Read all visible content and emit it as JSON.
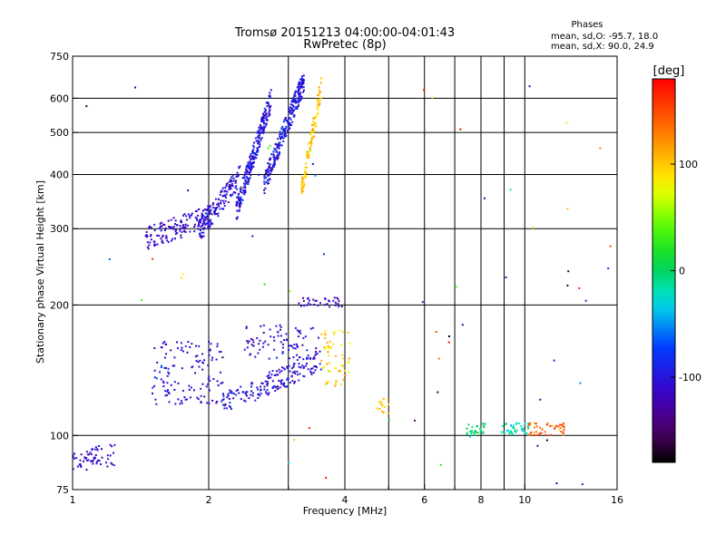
{
  "chart_data": {
    "type": "scatter",
    "title": "Tromsø 20151213 04:00:00-04:01:43",
    "subtitle": "RwPretec (8p)",
    "xlabel": "Frequency [MHz]",
    "ylabel": "Stationary phase Virtual Height [km]",
    "xscale": "log",
    "yscale": "log",
    "xlim": [
      1,
      16
    ],
    "ylim": [
      75,
      750
    ],
    "x_ticks": [
      1,
      2,
      4,
      6,
      8,
      10,
      16
    ],
    "x_tick_labels": [
      "1",
      "2",
      "4",
      "6",
      "8",
      "10",
      "16"
    ],
    "x_minor_ticks": [
      3,
      5,
      7,
      9
    ],
    "y_ticks": [
      75,
      100,
      200,
      300,
      400,
      500,
      600,
      750
    ],
    "y_tick_labels": [
      "75",
      "100",
      "200",
      "300",
      "400",
      "500",
      "600",
      "750"
    ],
    "grid": true,
    "phases": {
      "title": "Phases",
      "line_o": "mean, sd,O: -95.7, 18.0",
      "line_x": "mean, sd,X: 90.0, 24.9"
    },
    "colorbar": {
      "label": "[deg]",
      "range": [
        -180,
        180
      ],
      "ticks": [
        100,
        0,
        -100
      ],
      "tick_labels": [
        "100",
        "0",
        "-100"
      ],
      "colormap": "rainbow"
    },
    "clusters": [
      {
        "x0": 1.0,
        "x1": 1.25,
        "h0": 87,
        "h1": 91,
        "phase_mean": -110,
        "phase_sd": 10,
        "n": 60,
        "dist": "band"
      },
      {
        "x0": 1.45,
        "x1": 2.0,
        "h0": 285,
        "h1": 320,
        "phase_mean": -110,
        "phase_sd": 10,
        "n": 140,
        "dist": "band"
      },
      {
        "x0": 1.9,
        "x1": 2.35,
        "h0": 295,
        "h1": 400,
        "phase_mean": -105,
        "phase_sd": 12,
        "n": 150,
        "dist": "band"
      },
      {
        "x0": 2.3,
        "x1": 2.75,
        "h0": 330,
        "h1": 600,
        "phase_mean": -100,
        "phase_sd": 14,
        "n": 260,
        "dist": "band"
      },
      {
        "x0": 2.65,
        "x1": 3.25,
        "h0": 380,
        "h1": 660,
        "phase_mean": -100,
        "phase_sd": 15,
        "n": 280,
        "dist": "band"
      },
      {
        "x0": 3.2,
        "x1": 3.55,
        "h0": 360,
        "h1": 640,
        "phase_mean": 98,
        "phase_sd": 14,
        "n": 110,
        "dist": "band"
      },
      {
        "x0": 1.5,
        "x1": 2.15,
        "h0": 118,
        "h1": 165,
        "phase_mean": -105,
        "phase_sd": 14,
        "n": 130,
        "dist": "box"
      },
      {
        "x0": 2.15,
        "x1": 3.55,
        "h0": 118,
        "h1": 150,
        "phase_mean": -105,
        "phase_sd": 14,
        "n": 170,
        "dist": "band"
      },
      {
        "x0": 2.4,
        "x1": 3.5,
        "h0": 150,
        "h1": 180,
        "phase_mean": -105,
        "phase_sd": 14,
        "n": 90,
        "dist": "box"
      },
      {
        "x0": 3.15,
        "x1": 3.95,
        "h0": 198,
        "h1": 208,
        "phase_mean": -110,
        "phase_sd": 12,
        "n": 35,
        "dist": "box"
      },
      {
        "x0": 3.55,
        "x1": 4.1,
        "h0": 130,
        "h1": 175,
        "phase_mean": 95,
        "phase_sd": 15,
        "n": 60,
        "dist": "box"
      },
      {
        "x0": 4.7,
        "x1": 5.0,
        "h0": 112,
        "h1": 122,
        "phase_mean": 100,
        "phase_sd": 10,
        "n": 14,
        "dist": "box"
      },
      {
        "x0": 7.4,
        "x1": 8.2,
        "h0": 99,
        "h1": 107,
        "phase_mean": -10,
        "phase_sd": 15,
        "n": 30,
        "dist": "box"
      },
      {
        "x0": 8.9,
        "x1": 10.2,
        "h0": 100,
        "h1": 107,
        "phase_mean": -20,
        "phase_sd": 15,
        "n": 35,
        "dist": "box"
      },
      {
        "x0": 10.2,
        "x1": 12.3,
        "h0": 100,
        "h1": 107,
        "phase_mean": 140,
        "phase_sd": 15,
        "n": 45,
        "dist": "box"
      },
      {
        "x0": 1.0,
        "x1": 16.0,
        "h0": 75,
        "h1": 700,
        "phase_mean": 0,
        "phase_sd": 120,
        "n": 60,
        "dist": "scatter"
      }
    ]
  }
}
